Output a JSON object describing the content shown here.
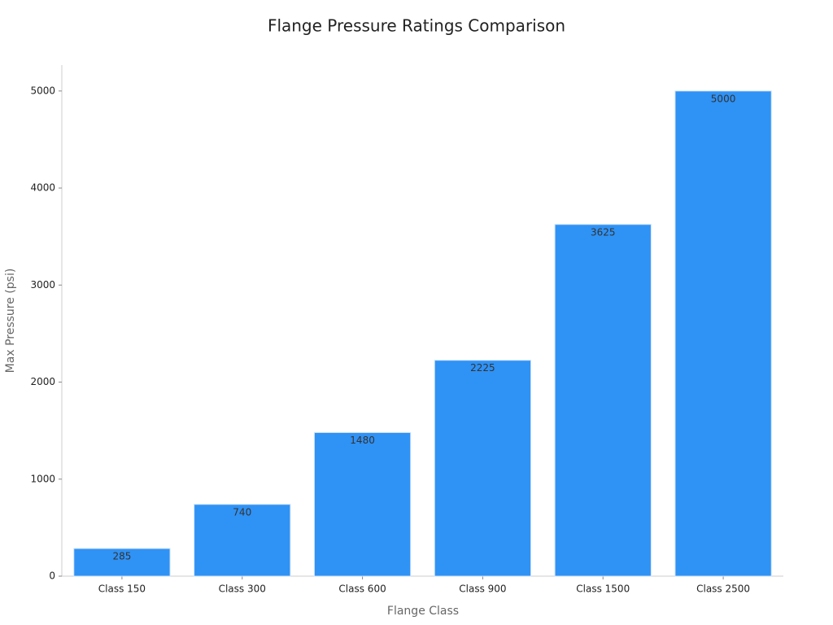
{
  "chart_data": {
    "type": "bar",
    "title": "Flange Pressure Ratings Comparison",
    "x_label": "Flange Class",
    "y_label": "Max Pressure (psi)",
    "categories": [
      "Class 150",
      "Class 300",
      "Class 600",
      "Class 900",
      "Class 1500",
      "Class 2500"
    ],
    "values": [
      285,
      740,
      1480,
      2225,
      3625,
      5000
    ],
    "color": "#2f92f5",
    "ylim": [
      0,
      5250
    ],
    "yticks": [
      0,
      1000,
      2000,
      3000,
      4000,
      5000
    ],
    "grid": false
  }
}
